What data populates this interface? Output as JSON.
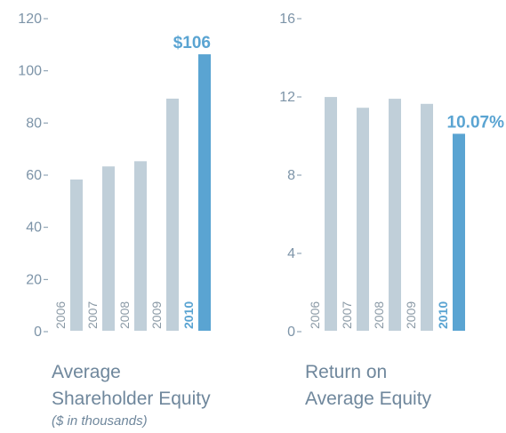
{
  "chart_data": [
    {
      "type": "bar",
      "caption": [
        "Average",
        "Shareholder Equity"
      ],
      "note": "($ in thousands)",
      "categories": [
        "2006",
        "2007",
        "2008",
        "2009",
        "2010"
      ],
      "values": [
        58,
        63,
        65,
        89,
        106
      ],
      "value_labels": [
        null,
        null,
        null,
        null,
        "$106"
      ],
      "colors": [
        "#c0cfd9",
        "#c0cfd9",
        "#c0cfd9",
        "#c0cfd9",
        "#5aa4d2"
      ],
      "label_colors": [
        "#8b9aa6",
        "#8b9aa6",
        "#8b9aa6",
        "#8b9aa6",
        "#5aa4d2"
      ],
      "ylim": [
        0,
        120
      ],
      "yticks": [
        0,
        20,
        40,
        60,
        80,
        100,
        120
      ]
    },
    {
      "type": "bar",
      "caption": [
        "Return on",
        "Average Equity"
      ],
      "categories": [
        "2006",
        "2007",
        "2008",
        "2009",
        "2010"
      ],
      "values": [
        11.95,
        11.4,
        11.86,
        11.6,
        10.07
      ],
      "value_labels": [
        null,
        null,
        null,
        null,
        "10.07%"
      ],
      "colors": [
        "#c0cfd9",
        "#c0cfd9",
        "#c0cfd9",
        "#c0cfd9",
        "#5aa4d2"
      ],
      "label_colors": [
        "#8b9aa6",
        "#8b9aa6",
        "#8b9aa6",
        "#8b9aa6",
        "#5aa4d2"
      ],
      "ylim": [
        0,
        16
      ],
      "yticks": [
        0,
        4,
        8,
        12,
        16
      ]
    }
  ]
}
